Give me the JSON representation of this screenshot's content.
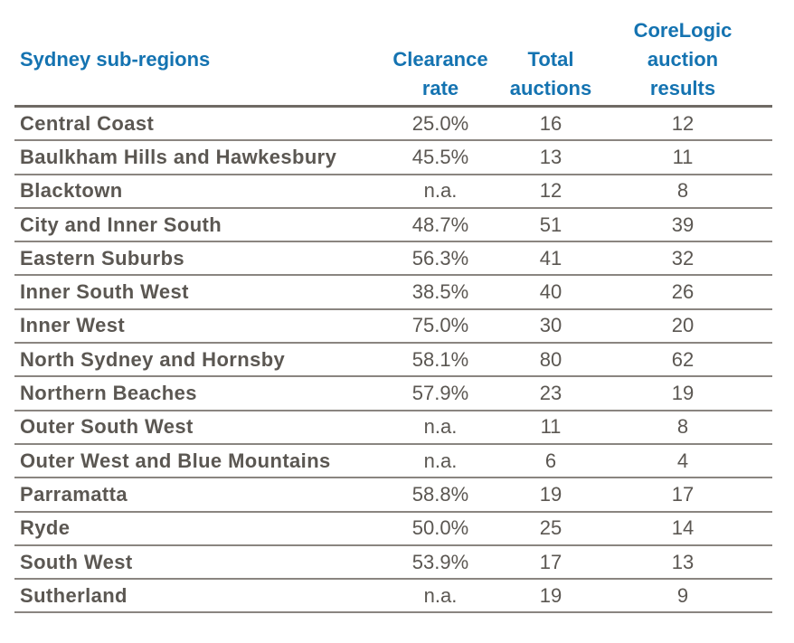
{
  "chart_data": {
    "type": "table",
    "columns": [
      "Sydney sub-regions",
      "Clearance\nrate",
      "Total\nauctions",
      "CoreLogic\nauction\nresults"
    ],
    "rows": [
      {
        "region": "Central Coast",
        "clearance_rate": "25.0%",
        "total_auctions": "16",
        "corelogic_results": "12"
      },
      {
        "region": "Baulkham Hills and Hawkesbury",
        "clearance_rate": "45.5%",
        "total_auctions": "13",
        "corelogic_results": "11"
      },
      {
        "region": "Blacktown",
        "clearance_rate": "n.a.",
        "total_auctions": "12",
        "corelogic_results": "8"
      },
      {
        "region": "City and Inner South",
        "clearance_rate": "48.7%",
        "total_auctions": "51",
        "corelogic_results": "39"
      },
      {
        "region": "Eastern Suburbs",
        "clearance_rate": "56.3%",
        "total_auctions": "41",
        "corelogic_results": "32"
      },
      {
        "region": "Inner South West",
        "clearance_rate": "38.5%",
        "total_auctions": "40",
        "corelogic_results": "26"
      },
      {
        "region": "Inner West",
        "clearance_rate": "75.0%",
        "total_auctions": "30",
        "corelogic_results": "20"
      },
      {
        "region": "North Sydney and Hornsby",
        "clearance_rate": "58.1%",
        "total_auctions": "80",
        "corelogic_results": "62"
      },
      {
        "region": "Northern Beaches",
        "clearance_rate": "57.9%",
        "total_auctions": "23",
        "corelogic_results": "19"
      },
      {
        "region": "Outer South West",
        "clearance_rate": "n.a.",
        "total_auctions": "11",
        "corelogic_results": "8"
      },
      {
        "region": "Outer West and Blue Mountains",
        "clearance_rate": "n.a.",
        "total_auctions": "6",
        "corelogic_results": "4"
      },
      {
        "region": "Parramatta",
        "clearance_rate": "58.8%",
        "total_auctions": "19",
        "corelogic_results": "17"
      },
      {
        "region": "Ryde",
        "clearance_rate": "50.0%",
        "total_auctions": "25",
        "corelogic_results": "14"
      },
      {
        "region": "South West",
        "clearance_rate": "53.9%",
        "total_auctions": "17",
        "corelogic_results": "13"
      },
      {
        "region": "Sutherland",
        "clearance_rate": "n.a.",
        "total_auctions": "19",
        "corelogic_results": "9"
      }
    ]
  },
  "colors": {
    "header_text": "#1473b1",
    "body_text": "#5b5752",
    "rule": "#8a8580"
  }
}
